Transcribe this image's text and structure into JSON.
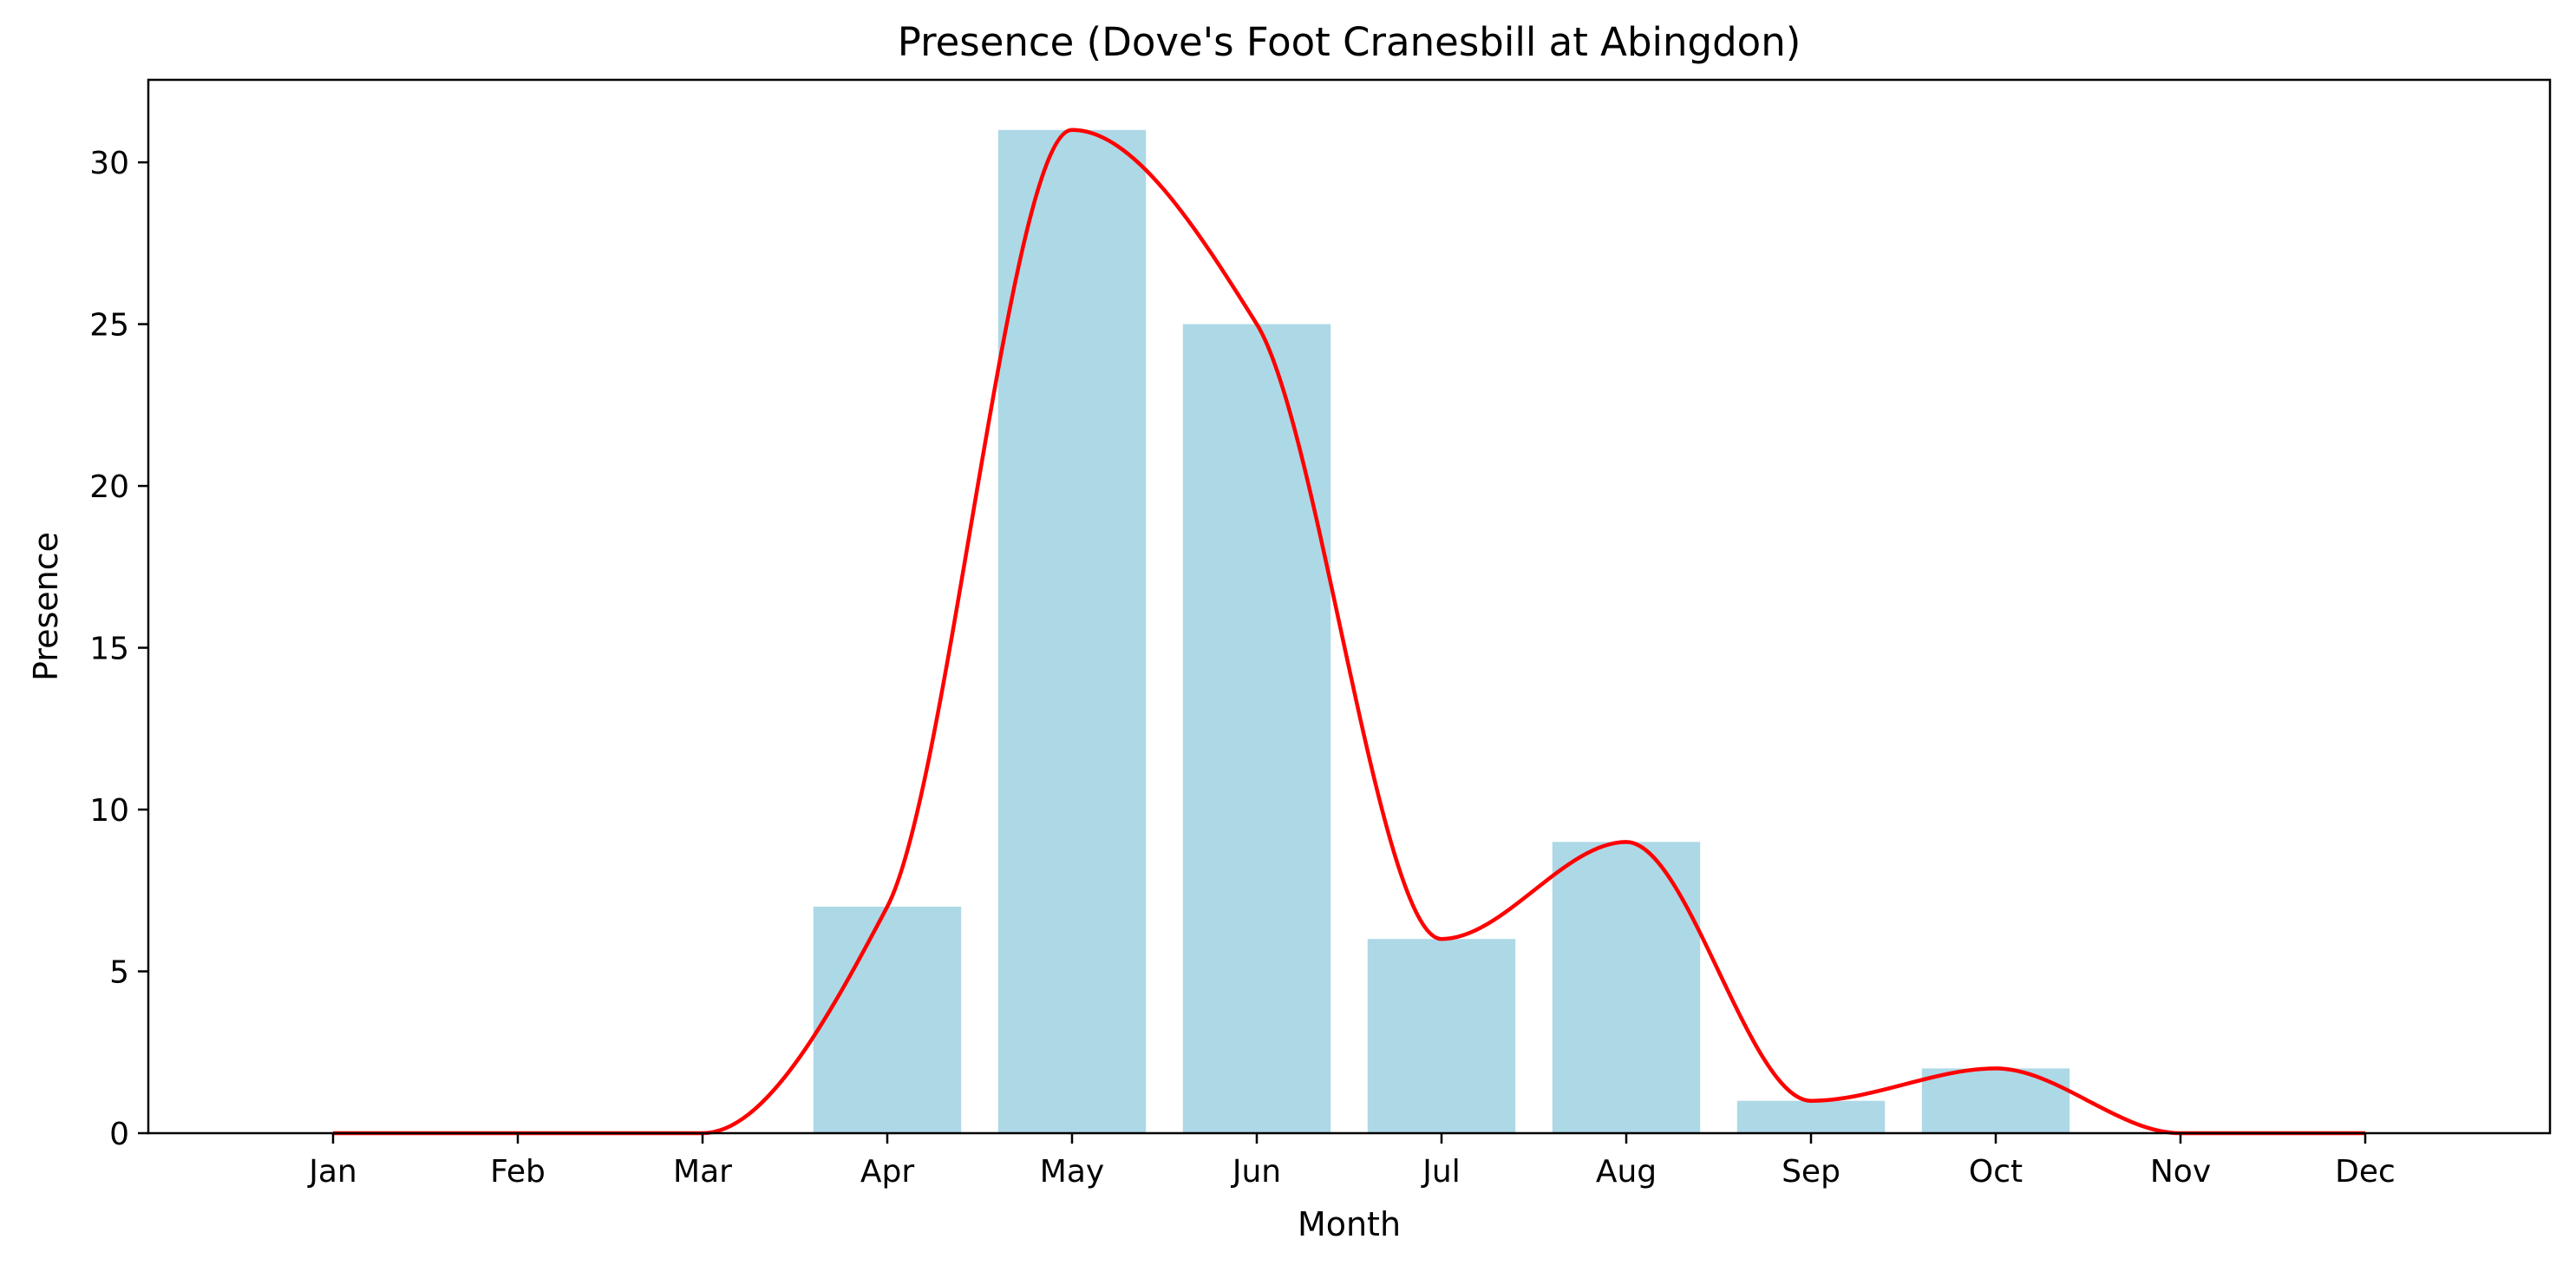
{
  "chart_data": {
    "type": "bar",
    "title": "Presence (Dove's Foot Cranesbill at Abingdon)",
    "xlabel": "Month",
    "ylabel": "Presence",
    "categories": [
      "Jan",
      "Feb",
      "Mar",
      "Apr",
      "May",
      "Jun",
      "Jul",
      "Aug",
      "Sep",
      "Oct",
      "Nov",
      "Dec"
    ],
    "series": [
      {
        "type": "bar",
        "values": [
          0,
          0,
          0,
          7,
          31,
          25,
          6,
          9,
          1,
          2,
          0,
          0
        ],
        "color": "#add8e6"
      },
      {
        "type": "line",
        "smooth": true,
        "values": [
          0,
          0,
          0,
          7,
          31,
          25,
          6,
          9,
          1,
          2,
          0,
          0
        ],
        "color": "#ff0000"
      }
    ],
    "ylim": [
      0,
      32.55
    ],
    "yticks": [
      0,
      5,
      10,
      15,
      20,
      25,
      30
    ],
    "grid": false,
    "legend": "none"
  }
}
